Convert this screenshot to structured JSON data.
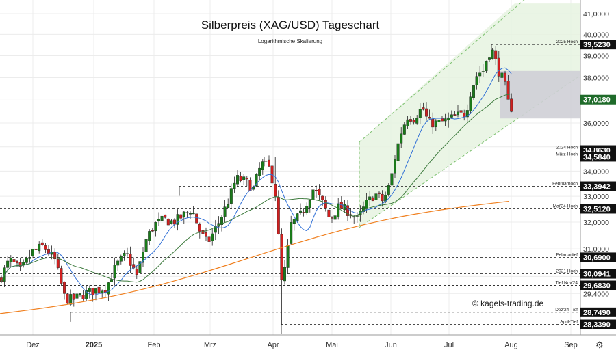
{
  "chart_data": {
    "type": "candlestick",
    "title": "Silberpreis (XAG/USD) Tageschart",
    "subtitle": "Logarithmische Skalierung",
    "copyright": "© kagels-trading.de",
    "y_scale": "log",
    "ylim": [
      28.0,
      41.5
    ],
    "y_ticks": [
      "41,0000",
      "40,0000",
      "39,0000",
      "38,0000",
      "36,0000",
      "34,0000",
      "33,0000",
      "32,0000",
      "31,0000",
      "29,4000"
    ],
    "x_labels": [
      {
        "label": "Dez",
        "bold": false
      },
      {
        "label": "2025",
        "bold": true
      },
      {
        "label": "Feb",
        "bold": false
      },
      {
        "label": "Mrz",
        "bold": false
      },
      {
        "label": "Apr",
        "bold": false
      },
      {
        "label": "Mai",
        "bold": false
      },
      {
        "label": "Jun",
        "bold": false
      },
      {
        "label": "Jul",
        "bold": false
      },
      {
        "label": "Aug",
        "bold": false
      },
      {
        "label": "Sep",
        "bold": false
      }
    ],
    "levels": [
      {
        "value": 39.523,
        "label": "2025 Hoch",
        "price": "39,5230"
      },
      {
        "value": 34.863,
        "label": "2024 Hoch",
        "price": "34,8630"
      },
      {
        "value": 34.584,
        "label": "März-Hoch",
        "price": "34,5840"
      },
      {
        "value": 33.394,
        "label": "Februarhoch",
        "price": "33,3942"
      },
      {
        "value": 32.512,
        "label": "Mai'24-Hoch",
        "price": "32,5120"
      },
      {
        "value": 30.69,
        "label": "Februartief",
        "price": "30,6900"
      },
      {
        "value": 30.094,
        "label": "2021 Hoch",
        "price": "30,0941"
      },
      {
        "value": 29.683,
        "label": "Tief Nov'24",
        "price": "29,6830"
      },
      {
        "value": 28.749,
        "label": "Dez'24-Tief",
        "price": "28,7490"
      },
      {
        "value": 28.339,
        "label": "April-Tief",
        "price": "28,3390"
      }
    ],
    "current_price": {
      "value": 37.018,
      "price": "37,0180"
    },
    "resistance_zone": [
      36.2,
      38.3
    ],
    "series": [
      {
        "name": "",
        "role": "sma20",
        "color": "#2f6fd6"
      },
      {
        "name": "",
        "role": "sma50",
        "color": "#3d7a3d"
      },
      {
        "name": "",
        "role": "sma200",
        "color": "#f08020"
      }
    ],
    "colors": {
      "up": "#1a7a1a",
      "down": "#d02020",
      "channel_fill": "#e6f3e0",
      "channel_line": "#7cc06e",
      "zone": "#cfcfd6"
    }
  }
}
